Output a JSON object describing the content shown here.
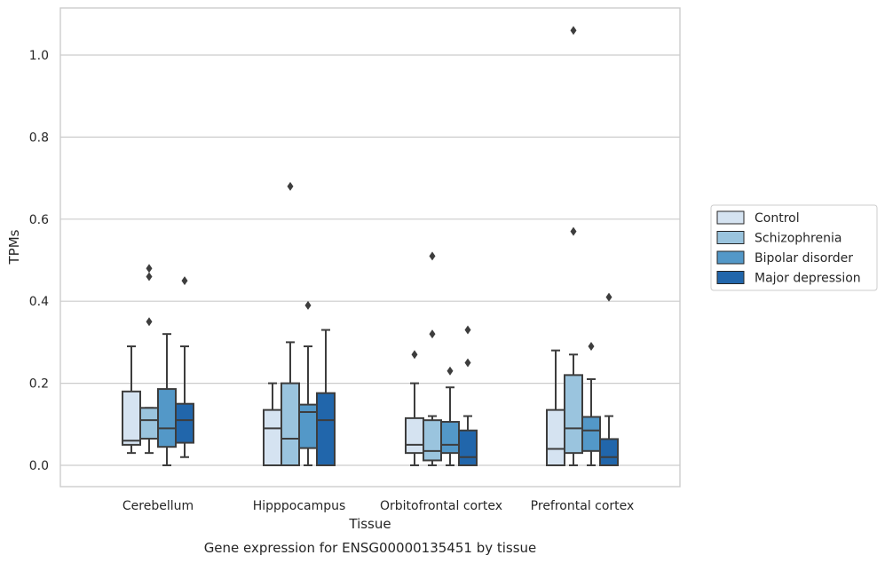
{
  "chart_data": {
    "type": "box",
    "caption": "Gene expression for ENSG00000135451 by tissue",
    "xlabel": "Tissue",
    "ylabel": "TPMs",
    "ylim": [
      -0.05,
      1.12
    ],
    "yticks": [
      0.0,
      0.2,
      0.4,
      0.6,
      0.8,
      1.0
    ],
    "ytick_labels": [
      "0.0",
      "0.2",
      "0.4",
      "0.6",
      "0.8",
      "1.0"
    ],
    "grid": "horizontal",
    "legend_position": "center-right",
    "categories": [
      "Cerebellum",
      "Hipppocampus",
      "Orbitofrontal cortex",
      "Prefrontal cortex"
    ],
    "series": [
      {
        "name": "Control",
        "color": "#d5e3f1",
        "boxes": [
          {
            "whislo": 0.03,
            "q1": 0.05,
            "med": 0.06,
            "q3": 0.18,
            "whishi": 0.29,
            "fliers": []
          },
          {
            "whislo": 0.0,
            "q1": 0.0,
            "med": 0.09,
            "q3": 0.135,
            "whishi": 0.2,
            "fliers": []
          },
          {
            "whislo": 0.0,
            "q1": 0.03,
            "med": 0.05,
            "q3": 0.115,
            "whishi": 0.2,
            "fliers": [
              0.27
            ]
          },
          {
            "whislo": 0.0,
            "q1": 0.0,
            "med": 0.04,
            "q3": 0.135,
            "whishi": 0.28,
            "fliers": []
          }
        ]
      },
      {
        "name": "Schizophrenia",
        "color": "#9ac4de",
        "boxes": [
          {
            "whislo": 0.03,
            "q1": 0.065,
            "med": 0.11,
            "q3": 0.14,
            "whishi": 0.14,
            "fliers": [
              0.35,
              0.46,
              0.48
            ]
          },
          {
            "whislo": 0.0,
            "q1": 0.0,
            "med": 0.065,
            "q3": 0.2,
            "whishi": 0.3,
            "fliers": [
              0.68
            ]
          },
          {
            "whislo": 0.0,
            "q1": 0.012,
            "med": 0.035,
            "q3": 0.11,
            "whishi": 0.12,
            "fliers": [
              0.32,
              0.51
            ]
          },
          {
            "whislo": 0.0,
            "q1": 0.03,
            "med": 0.09,
            "q3": 0.22,
            "whishi": 0.27,
            "fliers": [
              0.57,
              1.06
            ]
          }
        ]
      },
      {
        "name": "Bipolar disorder",
        "color": "#5398c8",
        "boxes": [
          {
            "whislo": 0.0,
            "q1": 0.045,
            "med": 0.09,
            "q3": 0.186,
            "whishi": 0.32,
            "fliers": []
          },
          {
            "whislo": 0.0,
            "q1": 0.042,
            "med": 0.13,
            "q3": 0.148,
            "whishi": 0.29,
            "fliers": [
              0.39
            ]
          },
          {
            "whislo": 0.0,
            "q1": 0.03,
            "med": 0.05,
            "q3": 0.106,
            "whishi": 0.19,
            "fliers": [
              0.23
            ]
          },
          {
            "whislo": 0.0,
            "q1": 0.035,
            "med": 0.085,
            "q3": 0.118,
            "whishi": 0.21,
            "fliers": [
              0.29
            ]
          }
        ]
      },
      {
        "name": "Major depression",
        "color": "#2166ab",
        "boxes": [
          {
            "whislo": 0.02,
            "q1": 0.055,
            "med": 0.11,
            "q3": 0.15,
            "whishi": 0.29,
            "fliers": [
              0.45
            ]
          },
          {
            "whislo": 0.0,
            "q1": 0.0,
            "med": 0.11,
            "q3": 0.176,
            "whishi": 0.33,
            "fliers": []
          },
          {
            "whislo": 0.0,
            "q1": 0.0,
            "med": 0.02,
            "q3": 0.085,
            "whishi": 0.12,
            "fliers": [
              0.25,
              0.33
            ]
          },
          {
            "whislo": 0.0,
            "q1": 0.0,
            "med": 0.02,
            "q3": 0.064,
            "whishi": 0.12,
            "fliers": [
              0.41
            ]
          }
        ]
      }
    ]
  }
}
